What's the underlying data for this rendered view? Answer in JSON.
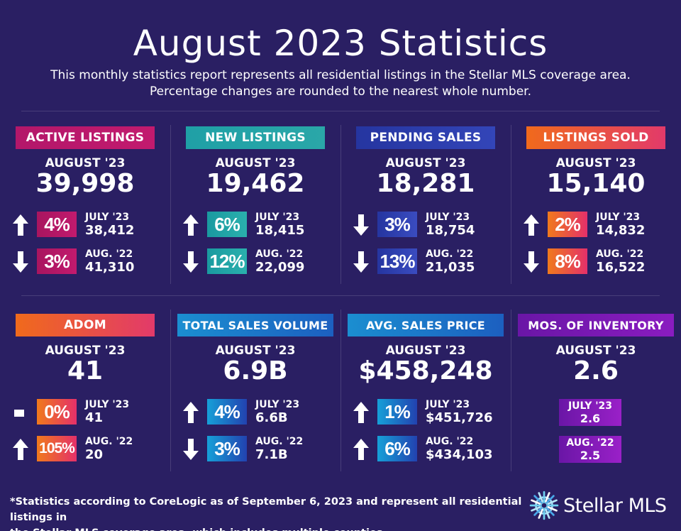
{
  "title": "August 2023 Statistics",
  "subtitle_line1": "This monthly statistics report represents all residential listings in the Stellar MLS coverage area.",
  "subtitle_line2": "Percentage changes are rounded to the nearest whole number.",
  "colors": {
    "background": "#2a1f63",
    "magenta": "#b3176a",
    "teal": "#2aa7a8",
    "blue": "#2b3aa8",
    "orange": "#f06a1c",
    "sky": "#1b8ed0",
    "purple": "#6a16a6"
  },
  "cards": [
    {
      "label": "ACTIVE LISTINGS",
      "theme": "magenta",
      "period": "AUGUST '23",
      "value": "39,998",
      "rows": [
        {
          "arrow": "up-arrow-icon",
          "pct": "4%",
          "label": "JULY '23",
          "value": "38,412"
        },
        {
          "arrow": "down-arrow-icon",
          "pct": "3%",
          "label": "AUG. '22",
          "value": "41,310"
        }
      ]
    },
    {
      "label": "NEW LISTINGS",
      "theme": "teal",
      "period": "AUGUST '23",
      "value": "19,462",
      "rows": [
        {
          "arrow": "up-arrow-icon",
          "pct": "6%",
          "label": "JULY '23",
          "value": "18,415"
        },
        {
          "arrow": "down-arrow-icon",
          "pct": "12%",
          "label": "AUG. '22",
          "value": "22,099"
        }
      ]
    },
    {
      "label": "PENDING SALES",
      "theme": "blue",
      "period": "AUGUST '23",
      "value": "18,281",
      "rows": [
        {
          "arrow": "down-arrow-icon",
          "pct": "3%",
          "label": "JULY '23",
          "value": "18,754"
        },
        {
          "arrow": "down-arrow-icon",
          "pct": "13%",
          "label": "AUG. '22",
          "value": "21,035"
        }
      ]
    },
    {
      "label": "LISTINGS SOLD",
      "theme": "orange",
      "period": "AUGUST '23",
      "value": "15,140",
      "rows": [
        {
          "arrow": "up-arrow-icon",
          "pct": "2%",
          "label": "JULY '23",
          "value": "14,832"
        },
        {
          "arrow": "down-arrow-icon",
          "pct": "8%",
          "label": "AUG. '22",
          "value": "16,522"
        }
      ]
    },
    {
      "label": "ADOM",
      "theme": "orange",
      "period": "AUGUST '23",
      "value": "41",
      "rows": [
        {
          "arrow": "dash-icon",
          "pct": "0%",
          "label": "JULY '23",
          "value": "41"
        },
        {
          "arrow": "up-arrow-icon",
          "pct": "105%",
          "label": "AUG. '22",
          "value": "20"
        }
      ]
    },
    {
      "label": "TOTAL SALES VOLUME",
      "theme": "sky",
      "period": "AUGUST '23",
      "value": "6.9B",
      "rows": [
        {
          "arrow": "up-arrow-icon",
          "pct": "4%",
          "label": "JULY '23",
          "value": "6.6B"
        },
        {
          "arrow": "down-arrow-icon",
          "pct": "3%",
          "label": "AUG. '22",
          "value": "7.1B"
        }
      ]
    },
    {
      "label": "AVG. SALES PRICE",
      "theme": "sky",
      "period": "AUGUST '23",
      "value": "$458,248",
      "rows": [
        {
          "arrow": "up-arrow-icon",
          "pct": "1%",
          "label": "JULY '23",
          "value": "$451,726"
        },
        {
          "arrow": "up-arrow-icon",
          "pct": "6%",
          "label": "AUG. '22",
          "value": "$434,103"
        }
      ]
    },
    {
      "label": "MOS. OF INVENTORY",
      "theme": "purple",
      "period": "AUGUST '23",
      "value": "2.6",
      "rows": [
        {
          "label": "JULY '23",
          "value": "2.6"
        },
        {
          "label": "AUG. '22",
          "value": "2.5"
        }
      ]
    }
  ],
  "footer_line1": "*Statistics according to CoreLogic as of September 6, 2023 and represent all residential listings in",
  "footer_line2": "the Stellar MLS coverage area, which includes multiple counties.",
  "logo_text": "Stellar MLS"
}
